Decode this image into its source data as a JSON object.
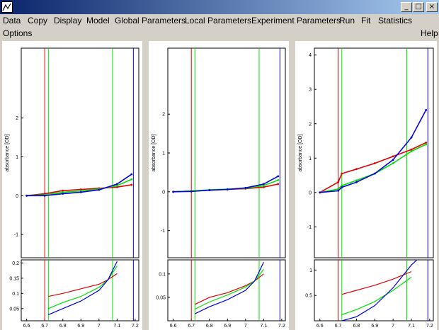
{
  "window": {
    "minimize_glyph": "_",
    "maximize_glyph": "□",
    "close_glyph": "×"
  },
  "menu": {
    "row1": [
      "Data",
      "Copy",
      "Display",
      "Model",
      "Global Parameters",
      "Local Parameters",
      "Experiment Parameters",
      "Run",
      "Fit",
      "Statistics"
    ],
    "options": "Options",
    "help": "Help"
  },
  "colors": {
    "red": "#e00000",
    "green": "#00e000",
    "blue": "#0000e0",
    "frame": "#000000"
  },
  "chart_data": [
    {
      "type": "scatter",
      "ylabel": "absorbance [OD]",
      "x_ticks": [
        "6.6",
        "6.7",
        "6.8",
        "6.9",
        "7",
        "7.1",
        "7.2"
      ],
      "xlim": [
        6.57,
        7.22
      ],
      "main_y_ticks": [
        "-1",
        "0",
        "1",
        "2"
      ],
      "main_ylim": [
        -1.6,
        3.8
      ],
      "resid_y_ticks": [
        "0.05",
        "0.1",
        "0.15",
        "0.2"
      ],
      "resid_ylim": [
        0.01,
        0.21
      ],
      "markers": [
        {
          "x": 6.7,
          "color": "red"
        },
        {
          "x": 6.72,
          "color": "green"
        },
        {
          "x": 7.075,
          "color": "green"
        },
        {
          "x": 7.19,
          "color": "blue"
        }
      ],
      "series": [
        {
          "color": "red",
          "values": [
            [
              6.6,
              0.0
            ],
            [
              6.7,
              0.05
            ],
            [
              6.8,
              0.13
            ],
            [
              6.9,
              0.16
            ],
            [
              7.0,
              0.19
            ],
            [
              7.1,
              0.22
            ],
            [
              7.18,
              0.28
            ]
          ]
        },
        {
          "color": "green",
          "values": [
            [
              6.6,
              0.0
            ],
            [
              6.7,
              0.02
            ],
            [
              6.8,
              0.09
            ],
            [
              6.9,
              0.12
            ],
            [
              7.0,
              0.17
            ],
            [
              7.1,
              0.26
            ],
            [
              7.18,
              0.42
            ]
          ]
        },
        {
          "color": "blue",
          "values": [
            [
              6.6,
              0.0
            ],
            [
              6.7,
              0.0
            ],
            [
              6.8,
              0.05
            ],
            [
              6.9,
              0.09
            ],
            [
              7.0,
              0.15
            ],
            [
              7.1,
              0.3
            ],
            [
              7.18,
              0.55
            ]
          ]
        }
      ],
      "residuals": [
        {
          "color": "red",
          "values": [
            [
              6.72,
              0.09
            ],
            [
              6.8,
              0.1
            ],
            [
              6.9,
              0.115
            ],
            [
              7.0,
              0.13
            ],
            [
              7.05,
              0.145
            ],
            [
              7.1,
              0.165
            ]
          ]
        },
        {
          "color": "green",
          "values": [
            [
              6.72,
              0.05
            ],
            [
              6.8,
              0.07
            ],
            [
              6.9,
              0.09
            ],
            [
              7.0,
              0.12
            ],
            [
              7.05,
              0.145
            ],
            [
              7.1,
              0.19
            ]
          ]
        },
        {
          "color": "blue",
          "values": [
            [
              6.72,
              0.03
            ],
            [
              6.8,
              0.05
            ],
            [
              6.9,
              0.075
            ],
            [
              7.0,
              0.11
            ],
            [
              7.05,
              0.145
            ],
            [
              7.1,
              0.205
            ]
          ]
        }
      ]
    },
    {
      "type": "scatter",
      "ylabel": "absorbance [OD]",
      "x_ticks": [
        "6.6",
        "6.7",
        "6.8",
        "6.9",
        "7",
        "7.1",
        "7.2"
      ],
      "xlim": [
        6.57,
        7.22
      ],
      "main_y_ticks": [
        "-1",
        "0",
        "1",
        "2"
      ],
      "main_ylim": [
        -1.7,
        3.7
      ],
      "resid_y_ticks": [
        "0.05",
        "0.1"
      ],
      "resid_ylim": [
        0.0,
        0.13
      ],
      "markers": [
        {
          "x": 6.7,
          "color": "red"
        },
        {
          "x": 6.72,
          "color": "green"
        },
        {
          "x": 7.075,
          "color": "green"
        },
        {
          "x": 7.19,
          "color": "blue"
        }
      ],
      "series": [
        {
          "color": "red",
          "values": [
            [
              6.6,
              0.0
            ],
            [
              6.7,
              0.02
            ],
            [
              6.8,
              0.04
            ],
            [
              6.9,
              0.06
            ],
            [
              7.0,
              0.08
            ],
            [
              7.1,
              0.12
            ],
            [
              7.18,
              0.2
            ]
          ]
        },
        {
          "color": "green",
          "values": [
            [
              6.6,
              0.0
            ],
            [
              6.7,
              0.02
            ],
            [
              6.8,
              0.05
            ],
            [
              6.9,
              0.07
            ],
            [
              7.0,
              0.09
            ],
            [
              7.1,
              0.16
            ],
            [
              7.18,
              0.3
            ]
          ]
        },
        {
          "color": "blue",
          "values": [
            [
              6.6,
              0.0
            ],
            [
              6.7,
              0.01
            ],
            [
              6.8,
              0.04
            ],
            [
              6.9,
              0.06
            ],
            [
              7.0,
              0.1
            ],
            [
              7.1,
              0.2
            ],
            [
              7.18,
              0.4
            ]
          ]
        }
      ],
      "residuals": [
        {
          "color": "red",
          "values": [
            [
              6.72,
              0.035
            ],
            [
              6.8,
              0.05
            ],
            [
              6.9,
              0.06
            ],
            [
              7.0,
              0.075
            ],
            [
              7.05,
              0.085
            ],
            [
              7.1,
              0.1
            ]
          ]
        },
        {
          "color": "green",
          "values": [
            [
              6.72,
              0.025
            ],
            [
              6.8,
              0.04
            ],
            [
              6.9,
              0.055
            ],
            [
              7.0,
              0.072
            ],
            [
              7.05,
              0.085
            ],
            [
              7.1,
              0.11
            ]
          ]
        },
        {
          "color": "blue",
          "values": [
            [
              6.72,
              0.015
            ],
            [
              6.8,
              0.03
            ],
            [
              6.9,
              0.045
            ],
            [
              7.0,
              0.065
            ],
            [
              7.05,
              0.085
            ],
            [
              7.1,
              0.125
            ]
          ]
        }
      ]
    },
    {
      "type": "scatter",
      "ylabel": "absorbance [OD]",
      "x_ticks": [
        "6.6",
        "6.7",
        "6.8",
        "6.9",
        "7",
        "7.1",
        "7.2"
      ],
      "xlim": [
        6.57,
        7.22
      ],
      "main_y_ticks": [
        "-1",
        "0",
        "1",
        "2",
        "3",
        "4"
      ],
      "main_ylim": [
        -1.9,
        4.2
      ],
      "resid_y_ticks": [
        "0.5",
        "1"
      ],
      "resid_ylim": [
        0.0,
        1.2
      ],
      "markers": [
        {
          "x": 6.7,
          "color": "red"
        },
        {
          "x": 6.72,
          "color": "green"
        },
        {
          "x": 7.075,
          "color": "green"
        },
        {
          "x": 7.19,
          "color": "blue"
        }
      ],
      "series": [
        {
          "color": "red",
          "values": [
            [
              6.6,
              0.0
            ],
            [
              6.7,
              0.3
            ],
            [
              6.72,
              0.55
            ],
            [
              6.8,
              0.68
            ],
            [
              6.9,
              0.85
            ],
            [
              7.0,
              1.05
            ],
            [
              7.1,
              1.25
            ],
            [
              7.18,
              1.45
            ]
          ]
        },
        {
          "color": "green",
          "values": [
            [
              6.6,
              0.0
            ],
            [
              6.7,
              0.1
            ],
            [
              6.72,
              0.2
            ],
            [
              6.8,
              0.35
            ],
            [
              6.9,
              0.55
            ],
            [
              7.0,
              0.85
            ],
            [
              7.1,
              1.2
            ],
            [
              7.18,
              1.4
            ]
          ]
        },
        {
          "color": "blue",
          "values": [
            [
              6.6,
              0.0
            ],
            [
              6.7,
              0.05
            ],
            [
              6.72,
              0.15
            ],
            [
              6.8,
              0.3
            ],
            [
              6.9,
              0.55
            ],
            [
              7.0,
              0.95
            ],
            [
              7.1,
              1.6
            ],
            [
              7.18,
              2.4
            ]
          ]
        }
      ],
      "residuals": [
        {
          "color": "red",
          "values": [
            [
              6.72,
              0.52
            ],
            [
              6.8,
              0.6
            ],
            [
              6.9,
              0.7
            ],
            [
              7.0,
              0.82
            ],
            [
              7.1,
              0.97
            ]
          ]
        },
        {
          "color": "green",
          "values": [
            [
              6.72,
              0.12
            ],
            [
              6.8,
              0.22
            ],
            [
              6.9,
              0.38
            ],
            [
              7.0,
              0.6
            ],
            [
              7.1,
              0.86
            ]
          ]
        },
        {
          "color": "blue",
          "values": [
            [
              6.72,
              0.0
            ],
            [
              6.8,
              0.08
            ],
            [
              6.9,
              0.3
            ],
            [
              7.0,
              0.65
            ],
            [
              7.1,
              1.1
            ],
            [
              7.13,
              1.2
            ]
          ]
        }
      ]
    }
  ]
}
